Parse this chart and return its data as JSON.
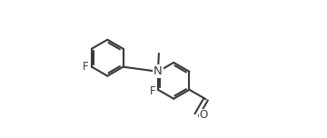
{
  "bg_color": "#ffffff",
  "bond_color": "#3a3a3a",
  "bond_lw": 1.5,
  "doff": 0.012,
  "font_size": 8.5,
  "figsize": [
    3.6,
    1.52
  ],
  "dpi": 100,
  "xlim": [
    0.0,
    1.0
  ],
  "ylim": [
    0.15,
    0.95
  ]
}
